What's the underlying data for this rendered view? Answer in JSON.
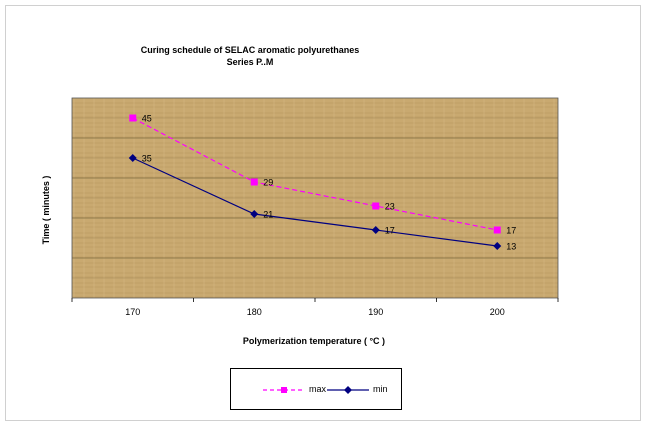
{
  "chart_data": {
    "type": "line",
    "title": "Curing schedule of SELAC aromatic polyurethanes",
    "subtitle": "Series P..M",
    "xlabel": "Polymerization temperature ( °C )",
    "ylabel": "Time ( minutes )",
    "categories": [
      "170",
      "180",
      "190",
      "200"
    ],
    "ylim": [
      0,
      50
    ],
    "grid": true,
    "legend_position": "bottom",
    "series": [
      {
        "name": "max",
        "values": [
          45,
          29,
          23,
          17
        ],
        "color": "#ff00ff",
        "line_style": "dashed",
        "marker": "square"
      },
      {
        "name": "min",
        "values": [
          35,
          21,
          17,
          13
        ],
        "color": "#000080",
        "line_style": "solid",
        "marker": "diamond"
      }
    ]
  },
  "colors": {
    "plot_background": "#c8a870",
    "gridline": "#8a7548"
  }
}
